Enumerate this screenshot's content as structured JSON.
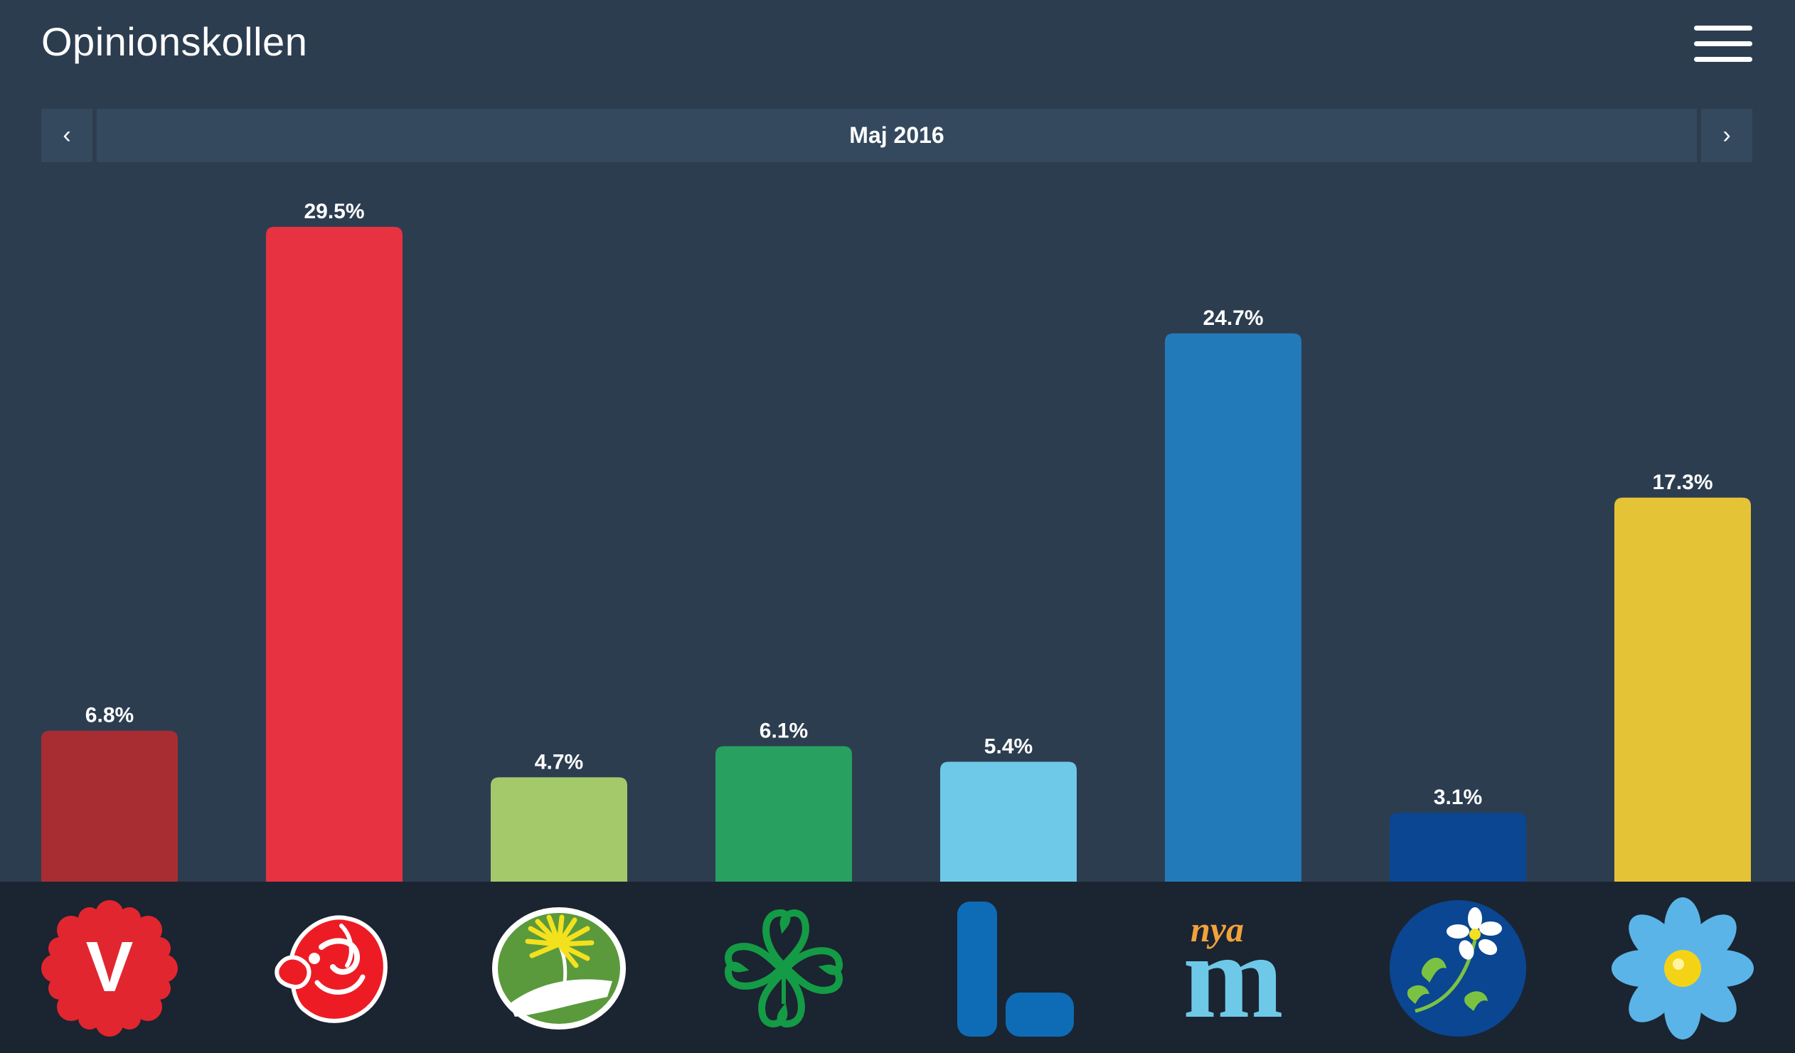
{
  "header": {
    "title": "Opinionskollen",
    "menu_icon": "hamburger-menu-icon"
  },
  "date_nav": {
    "prev_icon": "chevron-left-icon",
    "prev_symbol": "‹",
    "label": "Maj 2016",
    "next_icon": "chevron-right-icon",
    "next_symbol": "›"
  },
  "chart_data": {
    "type": "bar",
    "title": "",
    "xlabel": "",
    "ylabel": "",
    "ylim": [
      0,
      29.5
    ],
    "grid": false,
    "unit": "%",
    "categories": [
      "V",
      "S",
      "MP",
      "C",
      "L",
      "M",
      "KD",
      "SD"
    ],
    "values": [
      6.8,
      29.5,
      4.7,
      6.1,
      5.4,
      24.7,
      3.1,
      17.3
    ],
    "data_labels": [
      "6.8%",
      "29.5%",
      "4.7%",
      "6.1%",
      "5.4%",
      "24.7%",
      "3.1%",
      "17.3%"
    ],
    "colors": [
      "#a82d33",
      "#e63241",
      "#a4c96a",
      "#28a060",
      "#6ec9e8",
      "#237ab9",
      "#0a4691",
      "#e4c337"
    ]
  },
  "party_logos": [
    {
      "icon": "vansterpartiet-logo-icon",
      "letter": "V"
    },
    {
      "icon": "socialdemokraterna-rose-logo-icon"
    },
    {
      "icon": "miljopartiet-dandelion-logo-icon"
    },
    {
      "icon": "centerpartiet-clover-logo-icon"
    },
    {
      "icon": "liberalerna-logo-icon"
    },
    {
      "icon": "moderaterna-logo-icon",
      "text_top": "nya",
      "text_main": "m"
    },
    {
      "icon": "kristdemokraterna-anemone-logo-icon"
    },
    {
      "icon": "sverigedemokraterna-blue-anemone-logo-icon"
    }
  ]
}
